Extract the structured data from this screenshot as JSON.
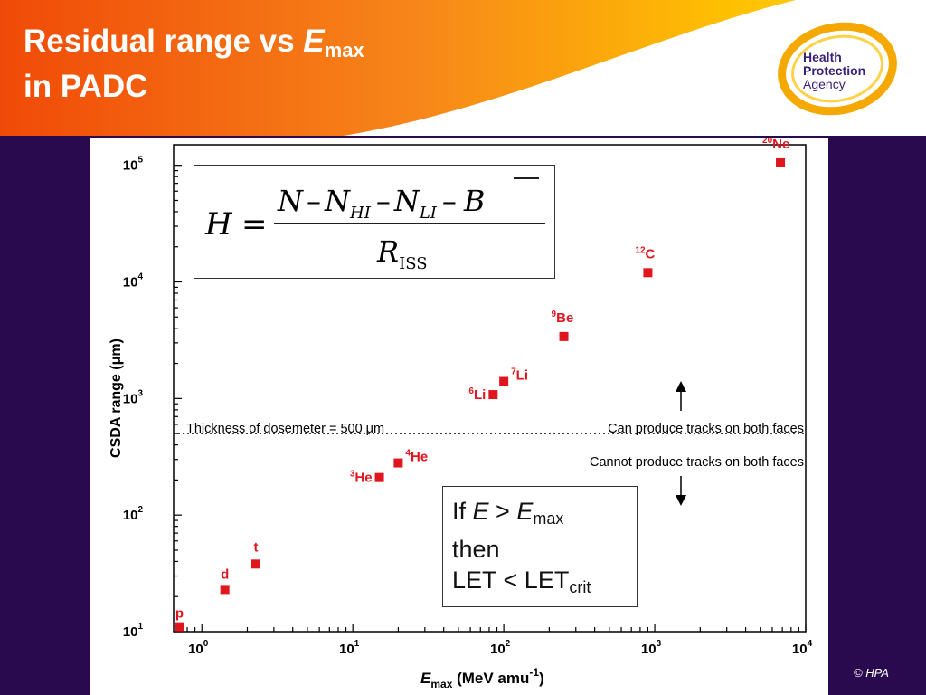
{
  "slide": {
    "title_part1": "Residual range vs ",
    "title_var": "E",
    "title_sub": "max",
    "title_line2": "in PADC",
    "copyright": "© HPA"
  },
  "logo": {
    "line1": "Health",
    "line2": "Protection",
    "line3": "Agency",
    "ring_color": "#f5a800",
    "text_color": "#3a2178"
  },
  "colors": {
    "header_orange": "#f05a0a",
    "header_yellow": "#ffc200",
    "background": "#2a0a4e",
    "marker": "#e0161e"
  },
  "formula": {
    "lhs": "H",
    "eq": "=",
    "numerator": [
      "N",
      "–",
      "N",
      "HI",
      "–",
      "N",
      "LI",
      "–",
      "B"
    ],
    "denominator": [
      "R",
      "ISS"
    ]
  },
  "condition": {
    "if_word": "If ",
    "E": "E",
    "gt": " > ",
    "Emax": "E",
    "max_sub": "max",
    "then": "then",
    "let_lhs": "LET < LET",
    "crit_sub": "crit"
  },
  "chart_data": {
    "type": "scatter",
    "xscale": "log",
    "yscale": "log",
    "xlim": [
      0.65,
      10000
    ],
    "ylim": [
      10,
      150000
    ],
    "xlabel": "E",
    "xlabel_sub": "max",
    "xlabel_unit": " (MeV amu",
    "xlabel_exp": "-1",
    "xlabel_close": ")",
    "ylabel": "CSDA range (μm)",
    "xticks": [
      {
        "base": "10",
        "exp": "0",
        "value": 1
      },
      {
        "base": "10",
        "exp": "1",
        "value": 10
      },
      {
        "base": "10",
        "exp": "2",
        "value": 100
      },
      {
        "base": "10",
        "exp": "3",
        "value": 1000
      },
      {
        "base": "10",
        "exp": "4",
        "value": 10000
      }
    ],
    "yticks": [
      {
        "base": "10",
        "exp": "1",
        "value": 10
      },
      {
        "base": "10",
        "exp": "2",
        "value": 100
      },
      {
        "base": "10",
        "exp": "3",
        "value": 1000
      },
      {
        "base": "10",
        "exp": "4",
        "value": 10000
      },
      {
        "base": "10",
        "exp": "5",
        "value": 100000
      }
    ],
    "points": [
      {
        "label": "p",
        "mass": "",
        "x": 0.71,
        "y": 11
      },
      {
        "label": "d",
        "mass": "",
        "x": 1.42,
        "y": 23
      },
      {
        "label": "t",
        "mass": "",
        "x": 2.28,
        "y": 38
      },
      {
        "label": "He",
        "mass": "3",
        "x": 15,
        "y": 210
      },
      {
        "label": "He",
        "mass": "4",
        "x": 20,
        "y": 280
      },
      {
        "label": "Li",
        "mass": "6",
        "x": 85,
        "y": 1080
      },
      {
        "label": "Li",
        "mass": "7",
        "x": 100,
        "y": 1400
      },
      {
        "label": "Be",
        "mass": "9",
        "x": 250,
        "y": 3400
      },
      {
        "label": "C",
        "mass": "12",
        "x": 900,
        "y": 12000
      },
      {
        "label": "Ne",
        "mass": "20",
        "x": 6800,
        "y": 105000
      }
    ],
    "threshold": {
      "value": 500,
      "label": "Thickness of dosemeter = 500 μm",
      "above": "Can produce tracks on both faces",
      "below": "Cannot produce tracks on both faces"
    },
    "grid": false,
    "legend": "none"
  }
}
